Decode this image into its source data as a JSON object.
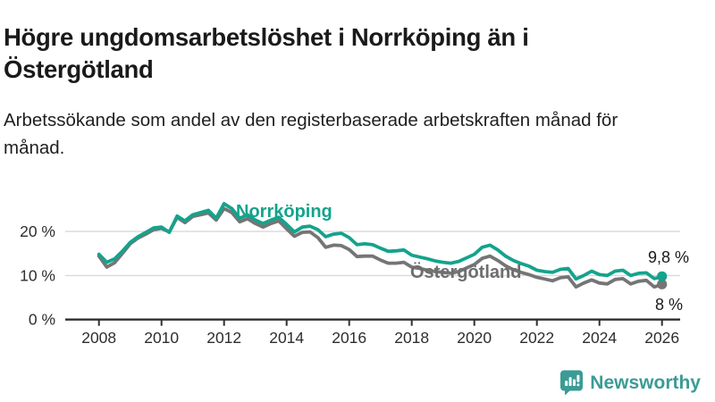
{
  "header": {
    "title": "Högre ungdomsarbetslöshet i Norrköping än i Östergötland",
    "subtitle": "Arbetssökande som andel av den registerbaserade arbetskraften månad för månad."
  },
  "chart_data": {
    "type": "line",
    "title": "Högre ungdomsarbetslöshet i Norrköping än i Östergötland",
    "subtitle": "Arbetssökande som andel av den registerbaserade arbetskraften månad för månad.",
    "x_start": 2008.0,
    "x_step": 0.25,
    "x_ticks": [
      2008,
      2010,
      2012,
      2014,
      2016,
      2018,
      2020,
      2022,
      2024,
      2026
    ],
    "y_ticks": [
      {
        "value": 0,
        "label": "0 %"
      },
      {
        "value": 10,
        "label": "10 %"
      },
      {
        "value": 20,
        "label": "20 %"
      }
    ],
    "ylim": [
      0,
      28.5
    ],
    "xlim": [
      2007.9,
      2026.6
    ],
    "grid": "horizontal",
    "legend_position": "inline-labels",
    "series": [
      {
        "name": "Norrköping",
        "color": "#14A38C",
        "end_label": "9,8 %",
        "end_value": 9.8,
        "values": [
          14.8,
          13.0,
          13.8,
          15.5,
          17.5,
          18.8,
          19.8,
          20.8,
          21.0,
          19.8,
          23.5,
          22.4,
          23.8,
          24.3,
          24.8,
          23.0,
          26.3,
          25.2,
          23.0,
          23.8,
          22.6,
          21.8,
          22.6,
          23.2,
          21.6,
          19.9,
          21.0,
          21.2,
          20.4,
          18.8,
          19.4,
          19.6,
          18.6,
          17.0,
          17.2,
          17.0,
          16.2,
          15.5,
          15.6,
          15.8,
          14.6,
          14.2,
          13.8,
          13.3,
          13.0,
          12.8,
          13.2,
          14.0,
          14.8,
          16.4,
          16.9,
          15.8,
          14.4,
          13.4,
          12.7,
          12.1,
          11.2,
          10.9,
          10.7,
          11.4,
          11.6,
          9.2,
          10.0,
          11.0,
          10.2,
          10.0,
          11.0,
          11.2,
          10.0,
          10.5,
          10.6,
          9.3,
          9.8
        ]
      },
      {
        "name": "Östergötland",
        "color": "#757575",
        "end_label": "8 %",
        "end_value": 8.0,
        "values": [
          14.4,
          11.9,
          12.9,
          15.0,
          17.2,
          18.5,
          19.4,
          20.4,
          20.7,
          19.9,
          23.2,
          22.0,
          23.4,
          23.8,
          24.2,
          22.6,
          25.2,
          24.3,
          22.2,
          22.9,
          21.8,
          21.0,
          21.8,
          22.4,
          20.6,
          18.9,
          19.8,
          19.9,
          18.6,
          16.4,
          16.9,
          16.8,
          15.9,
          14.3,
          14.4,
          14.4,
          13.5,
          12.8,
          12.8,
          13.0,
          11.9,
          11.6,
          11.2,
          10.9,
          10.7,
          10.5,
          10.9,
          11.7,
          12.5,
          13.9,
          14.4,
          13.4,
          12.2,
          11.3,
          10.7,
          10.2,
          9.6,
          9.2,
          8.8,
          9.5,
          9.7,
          7.4,
          8.3,
          9.0,
          8.3,
          8.1,
          9.1,
          9.3,
          8.1,
          8.7,
          8.9,
          7.4,
          8.0
        ]
      }
    ]
  },
  "colors": {
    "accent_teal": "#14A38C",
    "series_gray": "#757575",
    "gridline": "#d9d9d9",
    "axis": "#2f2f2f",
    "text_dark": "#1a1a1a",
    "brand_teal": "#3B9B95"
  },
  "footer": {
    "brand": "Newsworthy",
    "brand_icon": "bar-chart-speech-bubble-icon"
  }
}
